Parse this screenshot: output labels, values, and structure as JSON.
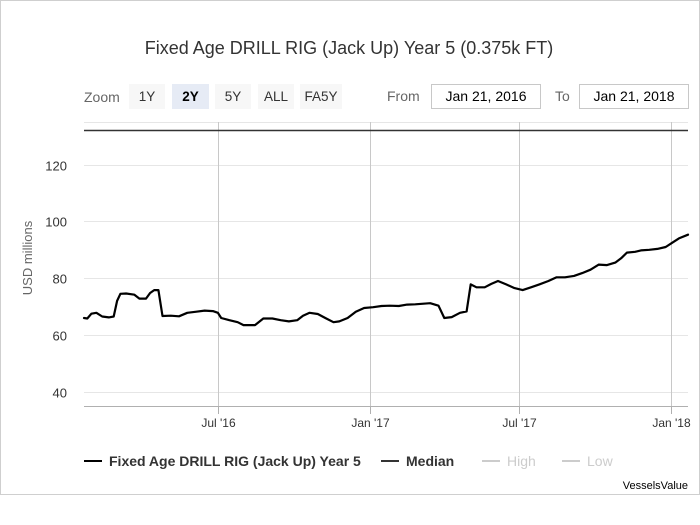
{
  "title": "Fixed Age DRILL RIG (Jack Up) Year 5 (0.375k FT)",
  "toolbar": {
    "zoom_label": "Zoom",
    "zoom_options": [
      "1Y",
      "2Y",
      "5Y",
      "ALL",
      "FA5Y"
    ],
    "zoom_selected": "2Y",
    "from_label": "From",
    "from_value": "Jan 21, 2016",
    "to_label": "To",
    "to_value": "Jan 21, 2018"
  },
  "credit": "VesselsValue",
  "colors": {
    "series": "#000000",
    "median": "#333333",
    "inactive": "#cccccc",
    "grid": "#e6e6e6",
    "x_grid": "#c8c8c8"
  },
  "chart_data": {
    "type": "line",
    "title": "Fixed Age DRILL RIG (Jack Up) Year 5 (0.375k FT)",
    "xlabel": "",
    "ylabel": "USD millions",
    "ylim": [
      35,
      135
    ],
    "xlim": [
      "2016-01-21",
      "2018-01-21"
    ],
    "yticks": [
      40,
      60,
      80,
      100,
      120
    ],
    "xticks": [
      {
        "date": "2016-07-01",
        "label": "Jul '16"
      },
      {
        "date": "2017-01-01",
        "label": "Jan '17"
      },
      {
        "date": "2017-07-01",
        "label": "Jul '17"
      },
      {
        "date": "2018-01-01",
        "label": "Jan '18"
      }
    ],
    "grid": true,
    "legend_position": "bottom",
    "median": 132,
    "series": [
      {
        "name": "Fixed Age DRILL RIG (Jack Up) Year 5",
        "points": [
          [
            "2016-01-21",
            66
          ],
          [
            "2016-01-25",
            65.8
          ],
          [
            "2016-01-30",
            67.5
          ],
          [
            "2016-02-05",
            67.8
          ],
          [
            "2016-02-12",
            66.5
          ],
          [
            "2016-02-20",
            66.2
          ],
          [
            "2016-02-26",
            66.5
          ],
          [
            "2016-03-01",
            72
          ],
          [
            "2016-03-05",
            74.5
          ],
          [
            "2016-03-12",
            74.6
          ],
          [
            "2016-03-22",
            74.2
          ],
          [
            "2016-03-28",
            72.8
          ],
          [
            "2016-04-05",
            72.8
          ],
          [
            "2016-04-10",
            74.8
          ],
          [
            "2016-04-15",
            75.8
          ],
          [
            "2016-04-20",
            75.8
          ],
          [
            "2016-04-25",
            66.7
          ],
          [
            "2016-05-05",
            66.8
          ],
          [
            "2016-05-15",
            66.6
          ],
          [
            "2016-05-25",
            67.8
          ],
          [
            "2016-06-05",
            68.2
          ],
          [
            "2016-06-15",
            68.6
          ],
          [
            "2016-06-25",
            68.4
          ],
          [
            "2016-07-01",
            67.8
          ],
          [
            "2016-07-05",
            66
          ],
          [
            "2016-07-15",
            65.2
          ],
          [
            "2016-07-25",
            64.5
          ],
          [
            "2016-08-01",
            63.5
          ],
          [
            "2016-08-15",
            63.5
          ],
          [
            "2016-08-25",
            65.8
          ],
          [
            "2016-09-05",
            65.8
          ],
          [
            "2016-09-15",
            65.2
          ],
          [
            "2016-09-25",
            64.8
          ],
          [
            "2016-10-05",
            65.2
          ],
          [
            "2016-10-12",
            66.8
          ],
          [
            "2016-10-20",
            67.8
          ],
          [
            "2016-10-30",
            67.4
          ],
          [
            "2016-11-08",
            66
          ],
          [
            "2016-11-18",
            64.5
          ],
          [
            "2016-11-25",
            64.8
          ],
          [
            "2016-12-05",
            66
          ],
          [
            "2016-12-15",
            68.2
          ],
          [
            "2016-12-25",
            69.5
          ],
          [
            "2017-01-05",
            69.8
          ],
          [
            "2017-01-15",
            70.2
          ],
          [
            "2017-01-25",
            70.3
          ],
          [
            "2017-02-05",
            70.2
          ],
          [
            "2017-02-15",
            70.7
          ],
          [
            "2017-02-25",
            70.8
          ],
          [
            "2017-03-05",
            71
          ],
          [
            "2017-03-15",
            71.2
          ],
          [
            "2017-03-25",
            70.3
          ],
          [
            "2017-04-01",
            66
          ],
          [
            "2017-04-10",
            66.3
          ],
          [
            "2017-04-20",
            67.8
          ],
          [
            "2017-04-28",
            68.3
          ],
          [
            "2017-05-03",
            77.8
          ],
          [
            "2017-05-10",
            76.8
          ],
          [
            "2017-05-20",
            76.8
          ],
          [
            "2017-05-28",
            78
          ],
          [
            "2017-06-05",
            79
          ],
          [
            "2017-06-15",
            77.8
          ],
          [
            "2017-06-25",
            76.5
          ],
          [
            "2017-07-05",
            75.8
          ],
          [
            "2017-07-15",
            76.8
          ],
          [
            "2017-07-25",
            77.8
          ],
          [
            "2017-08-05",
            79
          ],
          [
            "2017-08-15",
            80.3
          ],
          [
            "2017-08-25",
            80.3
          ],
          [
            "2017-09-05",
            80.8
          ],
          [
            "2017-09-15",
            81.8
          ],
          [
            "2017-09-25",
            83
          ],
          [
            "2017-10-05",
            84.8
          ],
          [
            "2017-10-15",
            84.6
          ],
          [
            "2017-10-25",
            85.5
          ],
          [
            "2017-11-01",
            87
          ],
          [
            "2017-11-08",
            89
          ],
          [
            "2017-11-18",
            89.3
          ],
          [
            "2017-11-25",
            89.8
          ],
          [
            "2017-12-05",
            90
          ],
          [
            "2017-12-15",
            90.3
          ],
          [
            "2017-12-25",
            91
          ],
          [
            "2018-01-02",
            92.5
          ],
          [
            "2018-01-10",
            94
          ],
          [
            "2018-01-21",
            95.3
          ]
        ]
      },
      {
        "name": "Median",
        "value": 132
      },
      {
        "name": "High",
        "visible": false
      },
      {
        "name": "Low",
        "visible": false
      }
    ]
  }
}
